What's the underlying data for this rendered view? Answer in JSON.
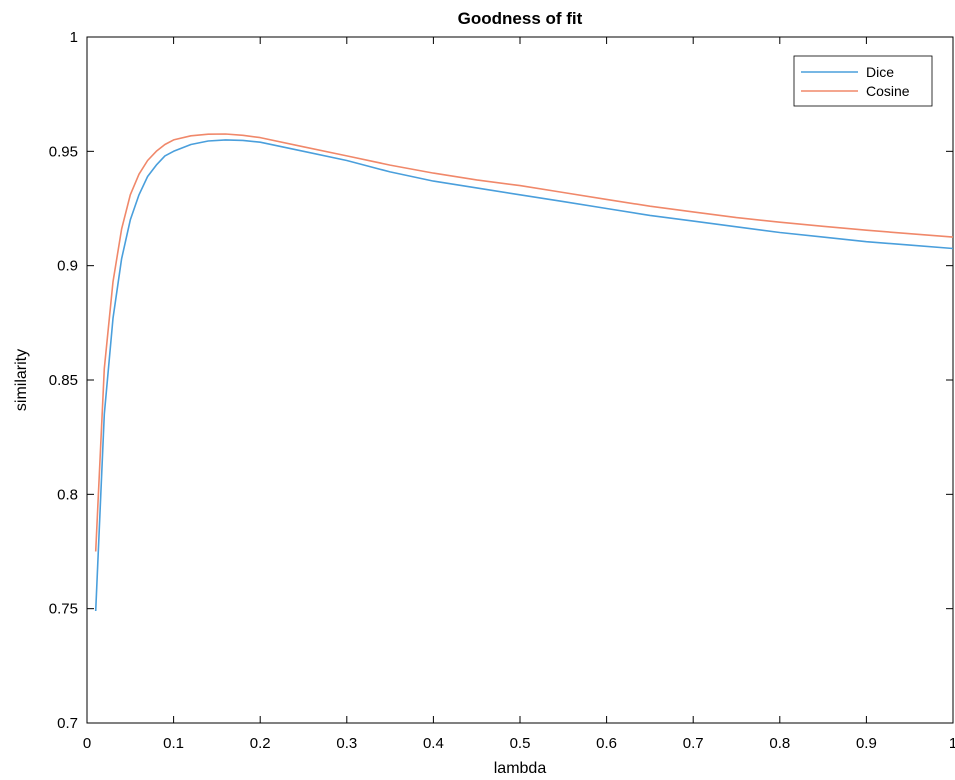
{
  "chart_data": {
    "type": "line",
    "title": "Goodness of fit",
    "xlabel": "lambda",
    "ylabel": "similarity",
    "xlim": [
      0,
      1
    ],
    "ylim": [
      0.7,
      1
    ],
    "xticks": [
      "0",
      "0.1",
      "0.2",
      "0.3",
      "0.4",
      "0.5",
      "0.6",
      "0.7",
      "0.8",
      "0.9",
      "1"
    ],
    "yticks": [
      "0.7",
      "0.75",
      "0.8",
      "0.85",
      "0.9",
      "0.95",
      "1"
    ],
    "grid": false,
    "legend_position": "top-right",
    "x": [
      0.01,
      0.02,
      0.03,
      0.04,
      0.05,
      0.06,
      0.07,
      0.08,
      0.09,
      0.1,
      0.12,
      0.14,
      0.16,
      0.18,
      0.2,
      0.25,
      0.3,
      0.35,
      0.4,
      0.45,
      0.5,
      0.55,
      0.6,
      0.65,
      0.7,
      0.75,
      0.8,
      0.85,
      0.9,
      0.95,
      1.0
    ],
    "series": [
      {
        "name": "Dice",
        "color": "#4a9fdc",
        "values": [
          0.749,
          0.835,
          0.877,
          0.903,
          0.92,
          0.931,
          0.939,
          0.944,
          0.948,
          0.95,
          0.953,
          0.9545,
          0.955,
          0.9548,
          0.954,
          0.95,
          0.946,
          0.941,
          0.937,
          0.934,
          0.931,
          0.928,
          0.925,
          0.922,
          0.9195,
          0.917,
          0.9145,
          0.9125,
          0.9105,
          0.909,
          0.9075
        ]
      },
      {
        "name": "Cosine",
        "color": "#f0886a",
        "values": [
          0.775,
          0.855,
          0.893,
          0.916,
          0.931,
          0.94,
          0.946,
          0.95,
          0.953,
          0.955,
          0.9568,
          0.9575,
          0.9576,
          0.957,
          0.956,
          0.952,
          0.948,
          0.944,
          0.9405,
          0.9375,
          0.935,
          0.932,
          0.929,
          0.926,
          0.9235,
          0.921,
          0.919,
          0.9172,
          0.9155,
          0.914,
          0.9125
        ]
      }
    ]
  }
}
